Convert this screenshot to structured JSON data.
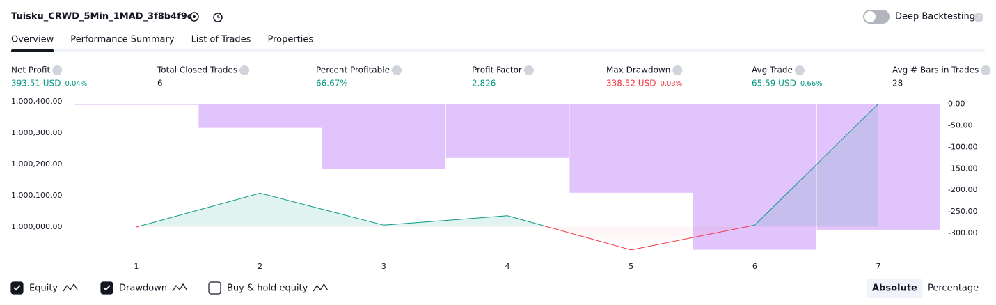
{
  "header": {
    "title": "Tuisku_CRWD_5Min_1MAD_3f8b4f9c",
    "toggle_label": "Deep Backtesting"
  },
  "tabs": [
    "Overview",
    "Performance Summary",
    "List of Trades",
    "Properties"
  ],
  "metrics": [
    {
      "label": "Net Profit",
      "value": "393.51 USD",
      "change": "0.04%",
      "color": "#089981"
    },
    {
      "label": "Total Closed Trades",
      "value": "6",
      "color": "#131722"
    },
    {
      "label": "Percent Profitable",
      "value": "66.67%",
      "color": "#089981"
    },
    {
      "label": "Profit Factor",
      "value": "2.826",
      "color": "#089981"
    },
    {
      "label": "Max Drawdown",
      "value": "338.52 USD",
      "change": "0.03%",
      "color": "#f23645"
    },
    {
      "label": "Avg Trade",
      "value": "65.59 USD",
      "change": "0.66%",
      "color": "#089981"
    },
    {
      "label": "Avg # Bars in Trades",
      "value": "28",
      "color": "#131722"
    }
  ],
  "chart_data": {
    "type": "line",
    "categories": [
      "1",
      "2",
      "3",
      "4",
      "5",
      "6",
      "7"
    ],
    "series": [
      {
        "name": "Equity",
        "color": "#089981",
        "values": [
          1000000,
          1000108,
          1000006,
          1000036,
          999927,
          1000006,
          1000393.51
        ]
      },
      {
        "name": "Drawdown",
        "color": "#e1c4fc",
        "axis": "y2",
        "values": [
          0,
          -55,
          -151,
          -125,
          -206,
          -338.52,
          -292
        ]
      }
    ],
    "ylim": [
      999920,
      1000400
    ],
    "yticks": [
      {
        "value": 1000000,
        "label": "1,000,000.00"
      },
      {
        "value": 1000100,
        "label": "1,000,100.00"
      },
      {
        "value": 1000200,
        "label": "1,000,200.00"
      },
      {
        "value": 1000300,
        "label": "1,000,300.00"
      },
      {
        "value": 1000400,
        "label": "1,000,400.00"
      }
    ],
    "y2lim": [
      -344,
      6
    ],
    "y2ticks": [
      {
        "value": 0,
        "label": "0.00"
      },
      {
        "value": -50,
        "label": "-50.00"
      },
      {
        "value": -100,
        "label": "-100.00"
      },
      {
        "value": -150,
        "label": "-150.00"
      },
      {
        "value": -200,
        "label": "-200.00"
      },
      {
        "value": -250,
        "label": "-250.00"
      },
      {
        "value": -300,
        "label": "-300.00"
      }
    ]
  },
  "controls": {
    "checkboxes": [
      {
        "label": "Equity",
        "checked": true
      },
      {
        "label": "Drawdown",
        "checked": true
      },
      {
        "label": "Buy & hold equity",
        "checked": false
      }
    ],
    "buttons": [
      "Absolute",
      "Percentage"
    ]
  }
}
